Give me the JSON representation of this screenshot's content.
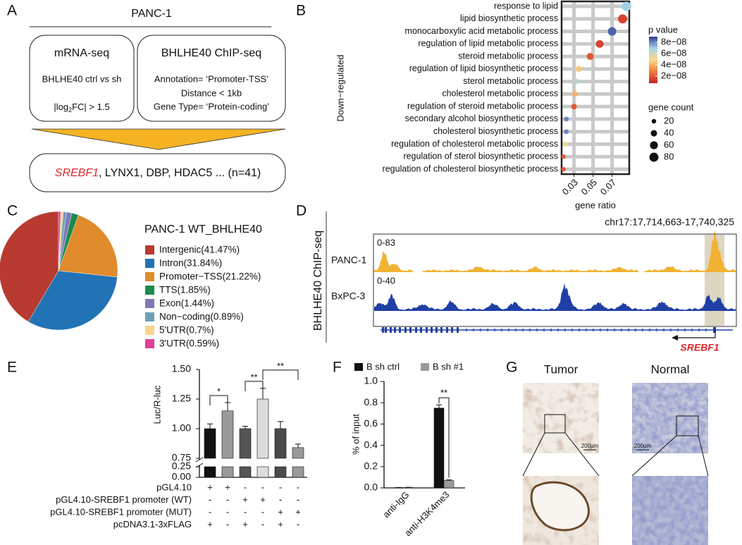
{
  "panel_labels": [
    "A",
    "B",
    "C",
    "D",
    "E",
    "F",
    "G"
  ],
  "workflow": {
    "cell_line": "PANC-1",
    "mrna": {
      "title": "mRNA-seq",
      "comparison": "BHLHE40 ctrl vs sh",
      "cutoff": {
        "pre": "|log",
        "sub": "2",
        "post": "FC| > 1.5"
      }
    },
    "chip": {
      "title": "BHLHE40 ChIP-seq",
      "criteria": [
        "Annotation= ‘Promoter-TSS’",
        "Distance < 1kb",
        "Gene Type= ‘Protein-coding’"
      ]
    },
    "result": {
      "highlight": "SREBF1",
      "rest": ",  LYNX1,  DBP,  HDAC5 ... (n=41)"
    }
  },
  "chart_data": [
    {
      "type": "dot",
      "y_group_label": "Down−regulated",
      "xlabel": "gene ratio",
      "categories": [
        "response to lipid",
        "lipid biosynthetic process",
        "monocarboxylic acid metabolic process",
        "regulation of lipid metabolic process",
        "steroid metabolic process",
        "regulation of lipid biosynthetic process",
        "sterol metabolic process",
        "cholesterol metabolic process",
        "regulation of steroid metabolic process",
        "secondary alcohol biosynthetic process",
        "cholesterol biosynthetic process",
        "regulation of cholesterol metabolic process",
        "regulation of sterol biosynthetic process",
        "regulation of cholesterol biosynthetic process"
      ],
      "values": [
        0.085,
        0.081,
        0.07,
        0.057,
        0.047,
        0.035,
        0.032,
        0.031,
        0.03,
        0.022,
        0.022,
        0.021,
        0.019,
        0.019
      ],
      "pvalues": [
        7e-08,
        1.5e-08,
        8.5e-08,
        1.5e-08,
        2e-08,
        4.5e-08,
        6.5e-08,
        4e-08,
        2e-08,
        8e-08,
        8e-08,
        5e-08,
        2e-08,
        2e-08
      ],
      "counts": [
        85,
        80,
        70,
        57,
        47,
        35,
        32,
        31,
        30,
        22,
        22,
        21,
        19,
        19
      ],
      "xlim": [
        0.017,
        0.088
      ],
      "xticks": [
        0.03,
        0.05,
        0.07
      ],
      "grid": true,
      "color_legend": {
        "title": "p value",
        "clim": [
          7.5e-09,
          9e-08
        ],
        "ticks": [
          {
            "value": 8e-08,
            "label": "8e−08"
          },
          {
            "value": 6e-08,
            "label": "6e−08"
          },
          {
            "value": 4e-08,
            "label": "4e−08"
          },
          {
            "value": 2e-08,
            "label": "2e−08"
          }
        ],
        "colors": [
          "#c8202a",
          "#ef7d3a",
          "#fbd98a",
          "#a9d4e6",
          "#2b3d98"
        ]
      },
      "size_legend": {
        "title": "gene count",
        "values": [
          20,
          40,
          60,
          80
        ]
      }
    },
    {
      "type": "pie",
      "title": "PANC-1 WT_BHLHE40",
      "categories": [
        "Intergenic(41.47%)",
        "Intron(31.84%)",
        "Promoter−TSS(21.22%)",
        "TTS(1.85%)",
        "Exon(1.44%)",
        "Non−coding(0.89%)",
        "5'UTR(0.7%)",
        "3'UTR(0.59%)"
      ],
      "values": [
        41.47,
        31.84,
        21.22,
        1.85,
        1.44,
        0.89,
        0.7,
        0.59
      ],
      "colors": [
        "#b83a30",
        "#2273b5",
        "#e08b2c",
        "#1b8a4c",
        "#8079b8",
        "#6fa0b8",
        "#f7d48c",
        "#de3f98"
      ]
    },
    {
      "type": "bar",
      "ylabel": "Luc/R-luc",
      "values": [
        1.0,
        1.15,
        1.0,
        1.25,
        1.0,
        0.84
      ],
      "errors": [
        0.04,
        0.07,
        0.02,
        0.09,
        0.06,
        0.03
      ],
      "colors": [
        "#111111",
        "#9a9a9a",
        "#555555",
        "#dcdcdc",
        "#4a4a4a",
        "#9a9a9a"
      ],
      "ylim": [
        0,
        1.5
      ],
      "ybreak": [
        0.25,
        0.75
      ],
      "yticks": [
        {
          "value": 0,
          "label": "0.00"
        },
        {
          "value": 0.25,
          "label": "0.25"
        },
        {
          "value": 0.75,
          "label": "0.75"
        },
        {
          "value": 1,
          "label": "1.00"
        },
        {
          "value": 1.25,
          "label": "1.25"
        },
        {
          "value": 1.5,
          "label": "1.50"
        }
      ],
      "significance": [
        {
          "pair": [
            0,
            1
          ],
          "label": "*"
        },
        {
          "pair": [
            2,
            3
          ],
          "label": "**"
        },
        {
          "pair": [
            3,
            5
          ],
          "label": "**"
        }
      ],
      "conditions": [
        {
          "label": "pGL4.10",
          "signs": [
            "+",
            "+",
            "-",
            "-",
            "-",
            "-"
          ]
        },
        {
          "label": "pGL4.10-SREBF1 promoter (WT)",
          "signs": [
            "-",
            "-",
            "+",
            "+",
            "-",
            "-"
          ]
        },
        {
          "label": "pGL4.10-SREBF1 promoter (MUT)",
          "signs": [
            "-",
            "-",
            "-",
            "-",
            "+",
            "+"
          ]
        },
        {
          "label": "pcDNA3.1-3xFLAG",
          "signs": [
            "+",
            "-",
            "+",
            "-",
            "+",
            "-"
          ]
        }
      ]
    },
    {
      "type": "grouped-bar",
      "ylabel": "% of input",
      "categories": [
        "anti-IgG",
        "anti-H3K4me3"
      ],
      "series": [
        {
          "name": "B sh ctrl",
          "color": "#111111",
          "values": [
            0.003,
            0.75
          ],
          "errors": [
            0.001,
            0.03
          ]
        },
        {
          "name": "B sh #1",
          "color": "#9a9a9a",
          "values": [
            0.005,
            0.07
          ],
          "errors": [
            0.001,
            0.005
          ]
        }
      ],
      "ylim": [
        0,
        1
      ],
      "yticks": [
        {
          "value": 0,
          "label": "0.0"
        },
        {
          "value": 0.2,
          "label": "0.2"
        },
        {
          "value": 0.4,
          "label": "0.4"
        },
        {
          "value": 0.6,
          "label": "0.6"
        },
        {
          "value": 0.8,
          "label": "0.8"
        },
        {
          "value": 1,
          "label": "1.0"
        }
      ],
      "significance": [
        {
          "category": 1,
          "label": "**"
        }
      ]
    }
  ],
  "tracks": {
    "title": "BHLHE40 ChIP-seq",
    "region": "chr17:17,714,663-17,740,325",
    "rows": [
      {
        "name": "PANC-1",
        "range": "0-83",
        "color": "#f2b233"
      },
      {
        "name": "BxPC-3",
        "range": "0-40",
        "color": "#1f3fa6"
      }
    ],
    "gene": "SREBF1"
  },
  "ihc": {
    "columns": [
      "Tumor",
      "Normal"
    ],
    "scale_bar": "200μm"
  }
}
